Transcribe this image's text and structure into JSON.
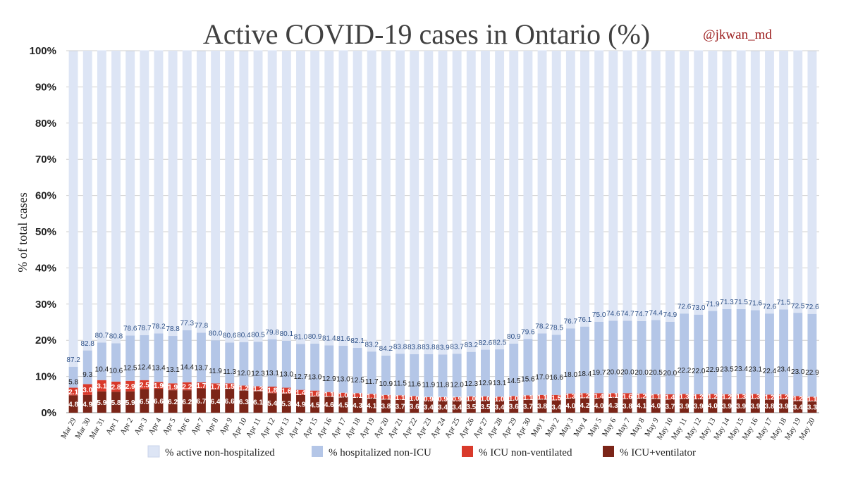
{
  "chart_data": {
    "type": "bar",
    "stacked": true,
    "title": "Active COVID-19 cases in Ontario (%)",
    "credit": "@jkwan_md",
    "ylabel": "% of total cases",
    "ylim": [
      0,
      100
    ],
    "yticks": [
      "0%",
      "10%",
      "20%",
      "30%",
      "40%",
      "50%",
      "60%",
      "70%",
      "80%",
      "90%",
      "100%"
    ],
    "grid": true,
    "legend_position": "bottom",
    "categories": [
      "Mar 29",
      "Mar 30",
      "Mar 31",
      "Apr 1",
      "Apr 2",
      "Apr 3",
      "Apr 4",
      "Apr 5",
      "Apr 6",
      "Apr 7",
      "Apr 8",
      "Apr 9",
      "Apr 10",
      "Apr 11",
      "Apr 12",
      "Apr 13",
      "Apr 14",
      "Apr 15",
      "Apr 16",
      "Apr 17",
      "Apr 18",
      "Apr 19",
      "Apr 20",
      "Apr 21",
      "Apr 22",
      "Apr 23",
      "Apr 24",
      "Apr 25",
      "Apr 26",
      "Apr 27",
      "Apr 28",
      "Apr 29",
      "Apr 30",
      "May 1",
      "May 2",
      "May 3",
      "May 4",
      "May 5",
      "May 6",
      "May 7",
      "May 8",
      "May 9",
      "May 10",
      "May 11",
      "May 12",
      "May 13",
      "May 14",
      "May 15",
      "May 16",
      "May 17",
      "May 18",
      "May 19",
      "May 20"
    ],
    "series": [
      {
        "name": "% ICU+ventilator",
        "color": "#7b2518",
        "values": [
          4.8,
          4.9,
          5.9,
          5.8,
          5.9,
          6.5,
          6.6,
          6.2,
          6.2,
          6.7,
          6.4,
          6.6,
          6.3,
          6.1,
          5.4,
          5.3,
          4.9,
          4.5,
          4.6,
          4.5,
          4.3,
          4.1,
          3.8,
          3.7,
          3.6,
          3.4,
          3.4,
          3.4,
          3.5,
          3.5,
          3.4,
          3.6,
          3.7,
          3.8,
          3.4,
          4.0,
          4.2,
          4.0,
          4.3,
          3.8,
          4.1,
          4.0,
          3.7,
          3.9,
          3.9,
          4.0,
          3.9,
          3.9,
          3.9,
          3.8,
          3.9,
          3.4,
          3.3
        ]
      },
      {
        "name": "% ICU non-ventilated",
        "color": "#d93a2b",
        "values": [
          2.1,
          3.0,
          3.1,
          2.8,
          2.9,
          2.5,
          1.9,
          1.9,
          2.2,
          1.7,
          1.7,
          1.5,
          1.2,
          1.2,
          1.8,
          1.6,
          1.4,
          1.6,
          1.1,
          1.0,
          1.1,
          1.1,
          1.1,
          1.1,
          1.0,
          0.9,
          0.9,
          0.9,
          1.0,
          1.0,
          1.0,
          1.0,
          1.1,
          1.1,
          1.5,
          1.3,
          1.2,
          1.4,
          1.1,
          1.6,
          1.2,
          1.1,
          1.4,
          1.3,
          1.2,
          1.2,
          1.2,
          1.3,
          1.3,
          1.2,
          1.2,
          1.2,
          1.1
        ]
      },
      {
        "name": "% hospitalized non-ICU",
        "color": "#b4c6e7",
        "values": [
          5.8,
          9.3,
          10.4,
          10.6,
          12.5,
          12.4,
          13.4,
          13.1,
          14.4,
          13.7,
          11.9,
          11.3,
          12.0,
          12.3,
          13.1,
          13.0,
          12.7,
          13.0,
          12.9,
          13.0,
          12.5,
          11.7,
          10.9,
          11.5,
          11.6,
          11.9,
          11.8,
          12.0,
          12.3,
          12.9,
          13.1,
          14.5,
          15.6,
          17.0,
          16.6,
          18.0,
          18.4,
          19.7,
          20.0,
          20.0,
          20.0,
          20.5,
          20.0,
          22.2,
          22.0,
          22.9,
          23.5,
          23.4,
          23.1,
          22.4,
          23.4,
          23.0,
          22.9
        ]
      },
      {
        "name": "% active non-hospitalized",
        "color": "#dde5f5",
        "values": [
          87.2,
          82.8,
          80.7,
          80.8,
          78.6,
          78.7,
          78.2,
          78.8,
          77.3,
          77.8,
          80.0,
          80.6,
          80.4,
          80.5,
          79.8,
          80.1,
          81.0,
          80.9,
          81.4,
          81.6,
          82.1,
          83.2,
          84.2,
          83.8,
          83.8,
          83.8,
          83.9,
          83.7,
          83.2,
          82.6,
          82.5,
          80.9,
          79.6,
          78.2,
          78.5,
          76.7,
          76.1,
          75.0,
          74.6,
          74.7,
          74.7,
          74.4,
          74.9,
          72.6,
          73.0,
          71.9,
          71.3,
          71.5,
          71.6,
          72.6,
          71.5,
          72.5,
          72.6
        ]
      }
    ],
    "data_labels": {
      "series": [
        [
          "4.8",
          "4.9",
          "5.9",
          "5.8",
          "5.9",
          "6.5",
          "6.6",
          "6.2",
          "6.2",
          "6.7",
          "6.4",
          "6.6",
          "6.3",
          "6.1",
          "5.4",
          "5.3",
          "4.9",
          "4.5",
          "4.6",
          "4.5",
          "4.3",
          "4.1",
          "3.8",
          "3.7",
          "3.6",
          "3.4",
          "3.4",
          "3.4",
          "3.5",
          "3.5",
          "3.4",
          "3.6",
          "3.7",
          "3.8",
          "3.4",
          "4.0",
          "4.2",
          "4.0",
          "4.3",
          "3.8",
          "4.1",
          "4.0",
          "3.7",
          "3.9",
          "3.9",
          "4.0",
          "3.9",
          "3.9",
          "3.9",
          "3.8",
          "3.9",
          "3.4",
          "3.3"
        ],
        [
          "2.1",
          "3.0",
          "3.1",
          "2.8",
          "2.9",
          "2.5",
          "1.9",
          "1.9",
          "2.2",
          "1.7",
          "1.7",
          "1.5",
          "1.2",
          "1.2",
          "1.8",
          "1.6",
          "1.4",
          "1.6",
          "1.1",
          "1.0",
          "1.1",
          "1.1",
          "1.1",
          "1.1",
          "1.0",
          "0.9",
          "0.9",
          "0.9",
          "1.0",
          "1.0",
          "1.0",
          "1.0",
          "1.1",
          "1.1",
          "1.5",
          "1.3",
          "1.2",
          "1.4",
          "1.1",
          "1.6",
          "1.2",
          "1.1",
          "1.4",
          "1.3",
          "1.2",
          "1.2",
          "1.2",
          "1.3",
          "1.3",
          "1.2",
          "1.2",
          "1.2",
          "1.1"
        ],
        [
          "5.8",
          "9.3",
          "10.4",
          "10.6",
          "12.5",
          "12.4",
          "13.4",
          "13.1",
          "14.4",
          "13.7",
          "11.9",
          "11.3",
          "12.0",
          "12.3",
          "13.1",
          "13.0",
          "12.7",
          "13.0",
          "12.9",
          "13.0",
          "12.5",
          "11.7",
          "10.9",
          "11.5",
          "11.6",
          "11.9",
          "11.8",
          "12.0",
          "12.3",
          "12.9",
          "13.1",
          "14.5",
          "15.6",
          "17.0",
          "16.6",
          "18.0",
          "18.4",
          "19.7",
          "20.0",
          "20.0",
          "20.0",
          "20.5",
          "20.0",
          "22.2",
          "22.0",
          "22.9",
          "23.5",
          "23.4",
          "23.1",
          "22.4",
          "23.4",
          "23.0",
          "22.9"
        ],
        [
          "87.2",
          "82.8",
          "80.7",
          "80.8",
          "78.6",
          "78.7",
          "78.2",
          "78.8",
          "77.3",
          "77.8",
          "80.0",
          "80.6",
          "80.4",
          "80.5",
          "79.8",
          "80.1",
          "81.0",
          "80.9",
          "81.4",
          "81.6",
          "82.1",
          "83.2",
          "84.2",
          "83.8",
          "83.8",
          "83.8",
          "83.9",
          "83.7",
          "83.2",
          "82.6",
          "82.5",
          "80.9",
          "79.6",
          "78.2",
          "78.5",
          "76.7",
          "76.1",
          "75.0",
          "74.6",
          "74.7",
          "74.7",
          "74.4",
          "74.9",
          "72.6",
          "73.0",
          "71.9",
          "71.3",
          "71.5",
          "71.6",
          "72.6",
          "71.5",
          "72.5",
          "72.6"
        ]
      ]
    },
    "legend": [
      {
        "label": "% active non-hospitalized",
        "color": "#dde5f5"
      },
      {
        "label": "% hospitalized non-ICU",
        "color": "#b4c6e7"
      },
      {
        "label": "% ICU non-ventilated",
        "color": "#d93a2b"
      },
      {
        "label": "% ICU+ventilator",
        "color": "#7b2518"
      }
    ]
  }
}
